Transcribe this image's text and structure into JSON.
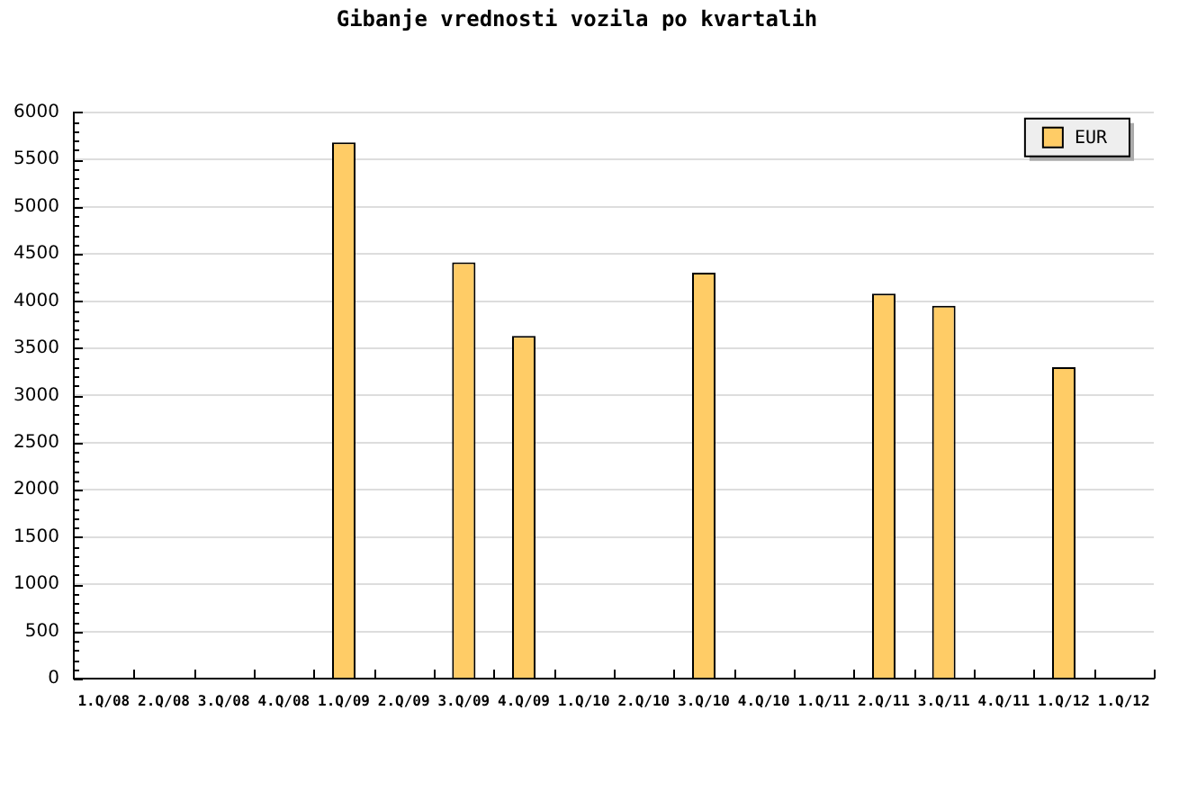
{
  "chart_data": {
    "type": "bar",
    "title": "Gibanje vrednosti vozila po kvartalih",
    "categories": [
      "1.Q/08",
      "2.Q/08",
      "3.Q/08",
      "4.Q/08",
      "1.Q/09",
      "2.Q/09",
      "3.Q/09",
      "4.Q/09",
      "1.Q/10",
      "2.Q/10",
      "3.Q/10",
      "4.Q/10",
      "1.Q/11",
      "2.Q/11",
      "3.Q/11",
      "4.Q/11",
      "1.Q/12",
      "1.Q/12"
    ],
    "series": [
      {
        "name": "EUR",
        "color": "#ffcc66",
        "values": [
          null,
          null,
          null,
          null,
          5680,
          null,
          4410,
          3630,
          null,
          null,
          4300,
          null,
          null,
          4080,
          3950,
          null,
          3300,
          null
        ]
      }
    ],
    "ylim": [
      0,
      6000
    ],
    "yticks": [
      0,
      {
        "value": 100,
        "label": null
      },
      {
        "value": 200,
        "label": null
      },
      {
        "value": 300,
        "label": null
      },
      {
        "value": 400,
        "label": null
      },
      500,
      {
        "value": 600,
        "label": null
      },
      {
        "value": 700,
        "label": null
      },
      {
        "value": 800,
        "label": null
      },
      {
        "value": 900,
        "label": null
      },
      1000,
      {
        "value": 1100,
        "label": null
      },
      {
        "value": 1200,
        "label": null
      },
      {
        "value": 1300,
        "label": null
      },
      {
        "value": 1400,
        "label": null
      },
      1500,
      {
        "value": 1600,
        "label": null
      },
      {
        "value": 1700,
        "label": null
      },
      {
        "value": 1800,
        "label": null
      },
      {
        "value": 1900,
        "label": null
      },
      2000,
      {
        "value": 2100,
        "label": null
      },
      {
        "value": 2200,
        "label": null
      },
      {
        "value": 2300,
        "label": null
      },
      {
        "value": 2400,
        "label": null
      },
      2500,
      {
        "value": 2600,
        "label": null
      },
      {
        "value": 2700,
        "label": null
      },
      {
        "value": 2800,
        "label": null
      },
      {
        "value": 2900,
        "label": null
      },
      3000,
      {
        "value": 3100,
        "label": null
      },
      {
        "value": 3200,
        "label": null
      },
      {
        "value": 3300,
        "label": null
      },
      {
        "value": 3400,
        "label": null
      },
      3500,
      {
        "value": 3600,
        "label": null
      },
      {
        "value": 3700,
        "label": null
      },
      {
        "value": 3800,
        "label": null
      },
      {
        "value": 3900,
        "label": null
      },
      4000,
      {
        "value": 4100,
        "label": null
      },
      {
        "value": 4200,
        "label": null
      },
      {
        "value": 4300,
        "label": null
      },
      {
        "value": 4400,
        "label": null
      },
      4500,
      {
        "value": 4600,
        "label": null
      },
      {
        "value": 4700,
        "label": null
      },
      {
        "value": 4800,
        "label": null
      },
      {
        "value": 4900,
        "label": null
      },
      5000,
      {
        "value": 5100,
        "label": null
      },
      {
        "value": 5200,
        "label": null
      },
      {
        "value": 5300,
        "label": null
      },
      {
        "value": 5400,
        "label": null
      },
      5500,
      {
        "value": 5600,
        "label": null
      },
      {
        "value": 5700,
        "label": null
      },
      {
        "value": 5800,
        "label": null
      },
      {
        "value": 5900,
        "label": null
      },
      6000
    ],
    "grid": "y",
    "legend": "top right"
  }
}
